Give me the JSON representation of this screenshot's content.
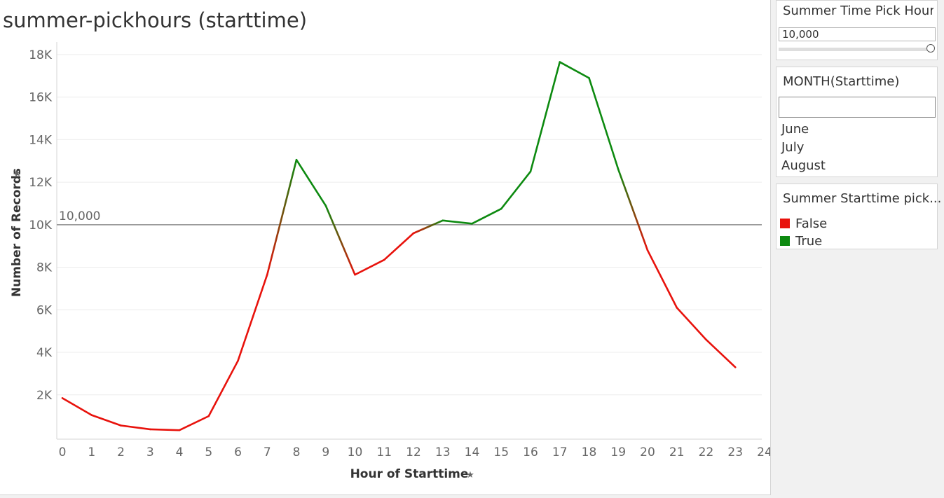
{
  "title": "summer-pickhours (starttime)",
  "parameter": {
    "title": "Summer Time Pick Hours",
    "value": "10,000"
  },
  "month_filter": {
    "title": "MONTH(Starttime)",
    "search_value": "",
    "items": [
      "June",
      "July",
      "August"
    ]
  },
  "legend": {
    "title": "Summer Starttime pick...",
    "items": [
      {
        "label": "False",
        "color": "#e8120c"
      },
      {
        "label": "True",
        "color": "#0d8a10"
      }
    ]
  },
  "chart_data": {
    "type": "line",
    "xlabel": "Hour of Starttime",
    "ylabel": "Number of Records",
    "x_ticks": [
      "0",
      "1",
      "2",
      "3",
      "4",
      "5",
      "6",
      "7",
      "8",
      "9",
      "10",
      "11",
      "12",
      "13",
      "14",
      "15",
      "16",
      "17",
      "18",
      "19",
      "20",
      "21",
      "22",
      "23",
      "24"
    ],
    "y_ticks": [
      "2K",
      "4K",
      "6K",
      "8K",
      "10K",
      "12K",
      "14K",
      "16K",
      "18K"
    ],
    "xlim": [
      0,
      24
    ],
    "ylim": [
      0,
      18000
    ],
    "reference_line": {
      "value": 10000,
      "label": "10,000"
    },
    "threshold": 10000,
    "colors": {
      "above": "#0d8a10",
      "below": "#e8120c"
    },
    "x": [
      0,
      1,
      2,
      3,
      4,
      5,
      6,
      7,
      8,
      9,
      10,
      11,
      12,
      13,
      14,
      15,
      16,
      17,
      18,
      19,
      20,
      21,
      22,
      23
    ],
    "values": [
      1850,
      1050,
      560,
      380,
      340,
      1000,
      3600,
      7650,
      13050,
      10900,
      7650,
      8350,
      9600,
      10200,
      10050,
      10750,
      12500,
      17650,
      16900,
      12600,
      8800,
      6100,
      4600,
      3300
    ],
    "grid": true
  }
}
